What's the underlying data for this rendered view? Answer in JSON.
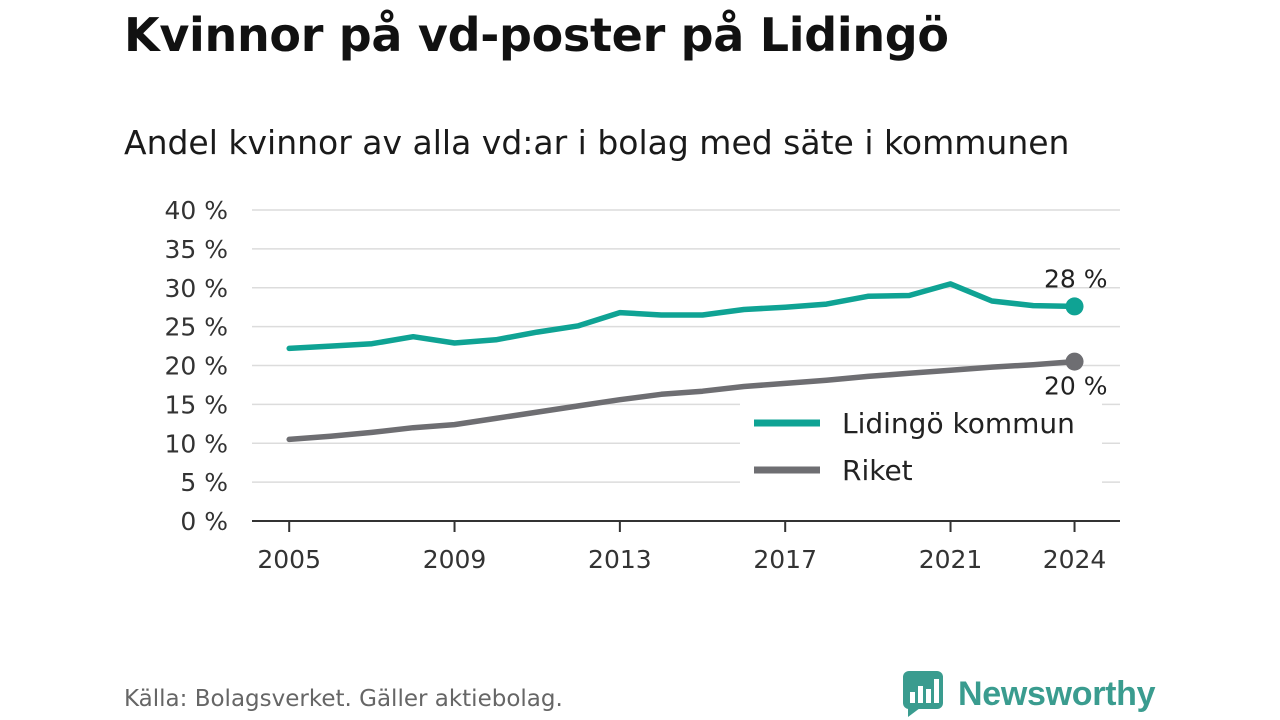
{
  "title": "Kvinnor på vd-poster på Lidingö",
  "subtitle": "Andel kvinnor av alla vd:ar i bolag med säte i kommunen",
  "source": "Källa: Bolagsverket. Gäller aktiebolag.",
  "brand": {
    "name": "Newsworthy",
    "icon": "newsworthy-logo-icon",
    "color": "#3a9c8f"
  },
  "chart_data": {
    "type": "line",
    "x": [
      2005,
      2006,
      2007,
      2008,
      2009,
      2010,
      2011,
      2012,
      2013,
      2014,
      2015,
      2016,
      2017,
      2018,
      2019,
      2020,
      2021,
      2022,
      2023,
      2024
    ],
    "x_ticks": [
      2005,
      2009,
      2013,
      2017,
      2021,
      2024
    ],
    "x_tick_labels": [
      "2005",
      "2009",
      "2013",
      "2017",
      "2021",
      "2024"
    ],
    "y_ticks": [
      0,
      5,
      10,
      15,
      20,
      25,
      30,
      35,
      40
    ],
    "y_tick_labels": [
      "0 %",
      "5 %",
      "10 %",
      "15 %",
      "20 %",
      "25 %",
      "30 %",
      "35 %",
      "40 %"
    ],
    "ylim": [
      0,
      40
    ],
    "grid": true,
    "legend_position": "bottom-right",
    "series": [
      {
        "name": "Lidingö kommun",
        "color": "#0fa394",
        "values": [
          22.2,
          22.5,
          22.8,
          23.7,
          22.9,
          23.3,
          24.3,
          25.1,
          26.8,
          26.5,
          26.5,
          27.2,
          27.5,
          27.9,
          28.9,
          29.0,
          30.5,
          28.3,
          27.7,
          27.6
        ],
        "end_label": "28 %"
      },
      {
        "name": "Riket",
        "color": "#6e6e72",
        "values": [
          10.5,
          10.9,
          11.4,
          12.0,
          12.4,
          13.2,
          14.0,
          14.8,
          15.6,
          16.3,
          16.7,
          17.3,
          17.7,
          18.1,
          18.6,
          19.0,
          19.4,
          19.8,
          20.1,
          20.5
        ],
        "end_label": "20 %"
      }
    ]
  }
}
